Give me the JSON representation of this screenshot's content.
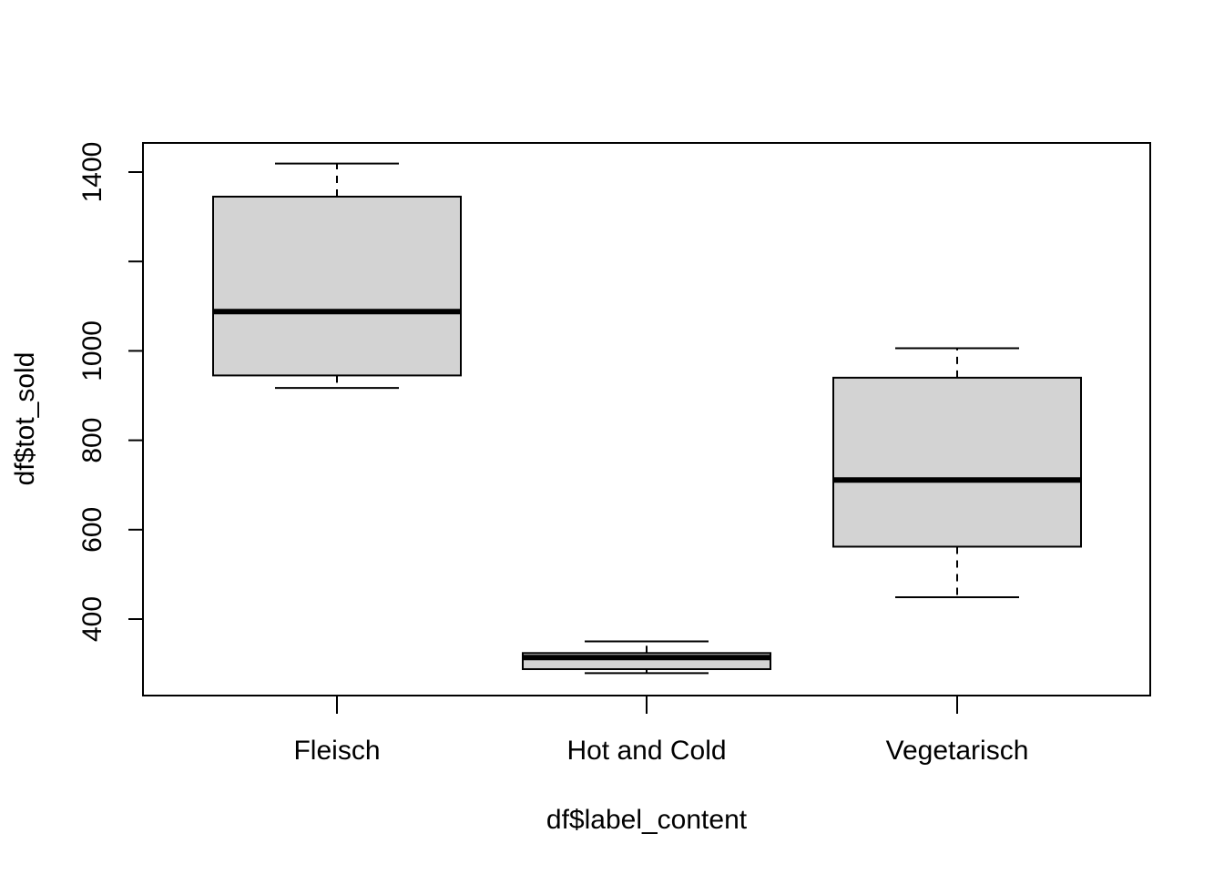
{
  "chart_data": {
    "type": "boxplot",
    "xlabel": "df$label_content",
    "ylabel": "df$tot_sold",
    "categories": [
      "Fleisch",
      "Hot and Cold",
      "Vegetarisch"
    ],
    "boxes": [
      {
        "category": "Fleisch",
        "whisker_low": 917,
        "q1": 945,
        "median": 1088,
        "q3": 1345,
        "whisker_high": 1419
      },
      {
        "category": "Hot and Cold",
        "whisker_low": 279,
        "q1": 288,
        "median": 314,
        "q3": 324,
        "whisker_high": 350
      },
      {
        "category": "Vegetarisch",
        "whisker_low": 449,
        "q1": 562,
        "median": 711,
        "q3": 940,
        "whisker_high": 1006
      }
    ],
    "yticks": [
      400,
      600,
      800,
      1000,
      1400
    ],
    "yminor_ticks": [
      1200
    ],
    "ylim": [
      230,
      1465
    ],
    "box_fill": "#d3d3d3",
    "grid": false
  }
}
